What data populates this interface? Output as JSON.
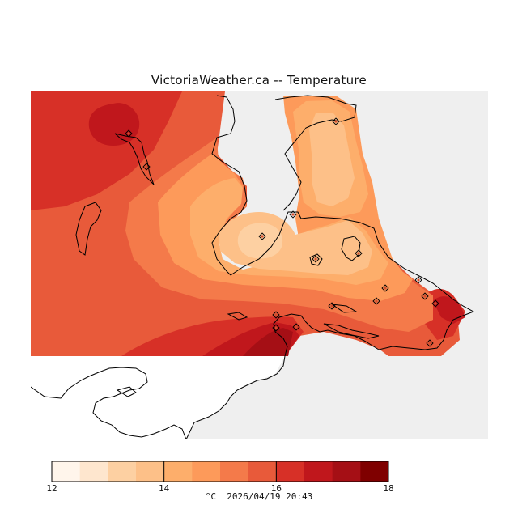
{
  "title": "VictoriaWeather.ca -- Temperature",
  "colorbar": {
    "tick_labels": [
      "12",
      "14",
      "16",
      "18"
    ],
    "unit": "°C",
    "timestamp": "2026/04/19 20:43",
    "colors": [
      "#fff5eb",
      "#fee6ce",
      "#fdd0a2",
      "#fdc088",
      "#fdae6b",
      "#fd9a5a",
      "#f47a4a",
      "#e85a3a",
      "#d73027",
      "#c0171c",
      "#a50f15",
      "#7f0000"
    ]
  },
  "colors": {
    "no_data_area": "#efefef",
    "coastline": "#000000",
    "station_marker": "#d44d2c"
  },
  "map": {
    "station_count": 17
  }
}
